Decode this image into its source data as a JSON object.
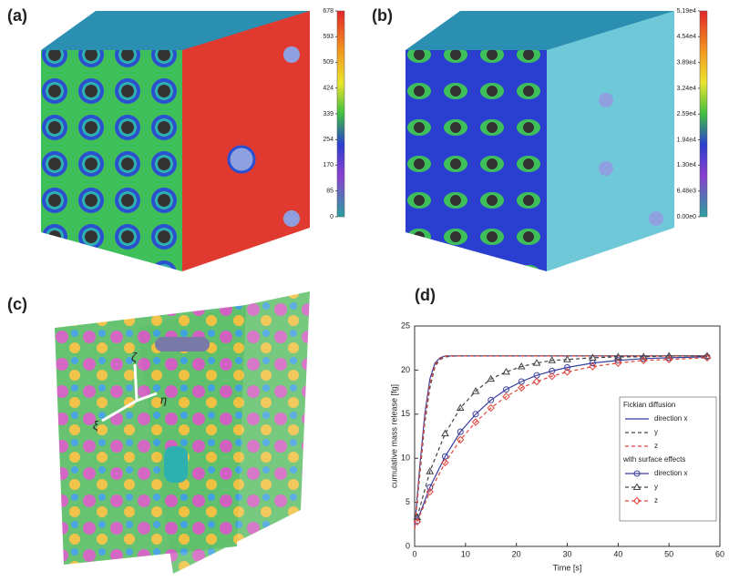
{
  "panels": [
    {
      "label": "(a)",
      "colorbar": {
        "lim": [
          0,
          678
        ],
        "ticks": [
          678,
          593,
          509,
          424,
          339,
          254,
          170,
          85,
          0
        ]
      }
    },
    {
      "label": "(b)",
      "colorbar": {
        "lim": [
          0,
          51900
        ],
        "ticks": [
          {
            "value": 51900,
            "label": "5.19e4"
          },
          {
            "value": 45400,
            "label": "4.54e4"
          },
          {
            "value": 38900,
            "label": "3.89e4"
          },
          {
            "value": 32400,
            "label": "3.24e4"
          },
          {
            "value": 25900,
            "label": "2.59e4"
          },
          {
            "value": 19400,
            "label": "1.94e4"
          },
          {
            "value": 13000,
            "label": "1.30e4"
          },
          {
            "value": 6480,
            "label": "6.48e3"
          },
          {
            "value": 0,
            "label": "0.00e0"
          }
        ]
      }
    },
    {
      "label": "(c)",
      "axes_labels": [
        "ζ",
        "ξ",
        "η"
      ]
    },
    {
      "label": "(d)"
    }
  ],
  "chart_data": {
    "type": "line",
    "xlabel": "Time [s]",
    "ylabel": "cumulative mass release [fg]",
    "xlim": [
      0,
      60
    ],
    "xticks": [
      0,
      10,
      20,
      30,
      40,
      50,
      60
    ],
    "ylim": [
      0,
      25
    ],
    "yticks": [
      0,
      5,
      10,
      15,
      20,
      25
    ],
    "legend": "right",
    "legend_groups": [
      "Fickian diffusion",
      "with surface effects"
    ],
    "series": [
      {
        "name": "direction x",
        "color": "#3a3f9e",
        "dash": "solid",
        "marker": "none",
        "group": 0,
        "x": [
          0,
          1,
          2,
          3,
          4,
          5,
          6,
          8,
          58
        ],
        "values": [
          2,
          9,
          15,
          19,
          20.8,
          21.4,
          21.6,
          21.6,
          21.6
        ]
      },
      {
        "name": "y",
        "color": "#444444",
        "dash": "dashed",
        "marker": "none",
        "group": 0,
        "x": [
          0,
          1,
          2,
          3,
          4,
          5,
          6,
          8,
          58
        ],
        "values": [
          2,
          8,
          14,
          18,
          20.4,
          21.2,
          21.5,
          21.6,
          21.6
        ]
      },
      {
        "name": "z",
        "color": "#e0463c",
        "dash": "dashed",
        "marker": "none",
        "group": 0,
        "x": [
          0,
          1,
          2,
          3,
          4,
          5,
          6,
          8,
          58
        ],
        "values": [
          2,
          8.5,
          14.5,
          18.5,
          20.6,
          21.3,
          21.6,
          21.6,
          21.6
        ]
      },
      {
        "name": "direction x",
        "color": "#3a3f9e",
        "dash": "solid",
        "marker": "circle",
        "group": 1,
        "x": [
          0.5,
          3,
          6,
          9,
          12,
          15,
          18,
          21,
          24,
          27,
          30,
          35,
          40,
          45,
          50,
          57.5
        ],
        "values": [
          2.9,
          6.7,
          10.2,
          13.0,
          15.0,
          16.6,
          17.8,
          18.7,
          19.4,
          19.9,
          20.3,
          20.8,
          21.1,
          21.3,
          21.4,
          21.5
        ]
      },
      {
        "name": "y",
        "color": "#444444",
        "dash": "dashed",
        "marker": "triangle",
        "group": 1,
        "x": [
          0.5,
          3,
          6,
          9,
          12,
          15,
          18,
          21,
          24,
          27,
          30,
          35,
          40,
          45,
          50,
          57.5
        ],
        "values": [
          3.3,
          8.5,
          12.8,
          15.7,
          17.6,
          19.0,
          19.8,
          20.4,
          20.8,
          21.1,
          21.2,
          21.4,
          21.5,
          21.5,
          21.6,
          21.6
        ]
      },
      {
        "name": "z",
        "color": "#e0463c",
        "dash": "dashed",
        "marker": "diamond",
        "group": 1,
        "x": [
          0.5,
          3,
          6,
          9,
          12,
          15,
          18,
          21,
          24,
          27,
          30,
          35,
          40,
          45,
          50,
          57.5
        ],
        "values": [
          2.8,
          6.2,
          9.5,
          12.1,
          14.1,
          15.7,
          17.0,
          18.0,
          18.7,
          19.3,
          19.8,
          20.4,
          20.8,
          21.1,
          21.2,
          21.4
        ]
      }
    ]
  }
}
